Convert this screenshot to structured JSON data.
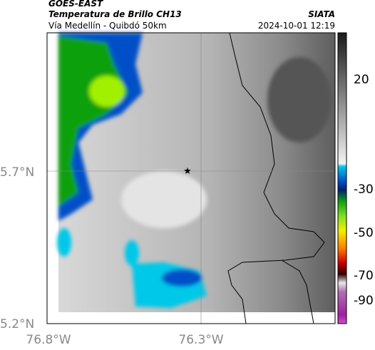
{
  "header": {
    "satellite": "GOES-EAST",
    "title": "Temperatura de Brillo CH13",
    "source": "SIATA",
    "subtitle": "Vía Medellín - Quibdó 50km",
    "datetime": "2024-10-01 12:19"
  },
  "map": {
    "lat_labels": [
      "5.7°N",
      "5.2°N"
    ],
    "lon_labels": [
      "76.8°W",
      "76.3°W"
    ]
  },
  "colorbar": {
    "tick_labels": [
      "20",
      "-30",
      "-50",
      "-70",
      "-90"
    ]
  }
}
